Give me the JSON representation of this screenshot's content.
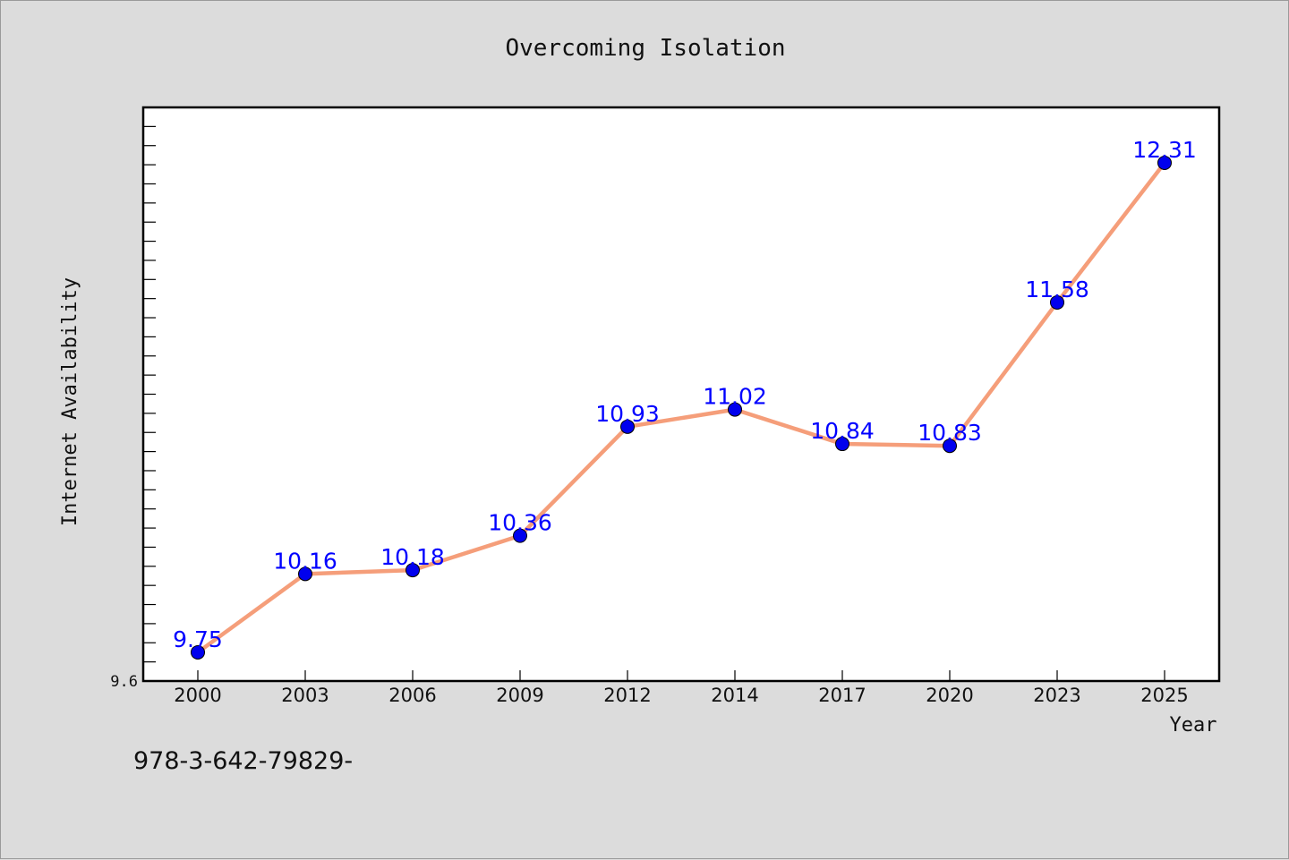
{
  "chart_data": {
    "type": "line",
    "title": "Overcoming Isolation",
    "xlabel": "Year",
    "ylabel": "Internet Availability",
    "categories": [
      "2000",
      "2003",
      "2006",
      "2009",
      "2012",
      "2014",
      "2017",
      "2020",
      "2023",
      "2025"
    ],
    "values": [
      9.75,
      10.16,
      10.18,
      10.36,
      10.93,
      11.02,
      10.84,
      10.83,
      11.58,
      12.31
    ],
    "data_labels": [
      "9.75",
      "10.16",
      "10.18",
      "10.36",
      "10.93",
      "11.02",
      "10.84",
      "10.83",
      "11.58",
      "12.31"
    ],
    "ylim": [
      9.6,
      12.6
    ],
    "y_tick_labels": [
      "9.6"
    ],
    "grid": false,
    "legend": "none",
    "colors": {
      "line": "#f59e7a",
      "marker": "#0000ee",
      "data_label": "#0000ff",
      "plot_background": "#ffffff",
      "figure_background": "#dcdcdc"
    }
  },
  "footnote": "978-3-642-79829-"
}
